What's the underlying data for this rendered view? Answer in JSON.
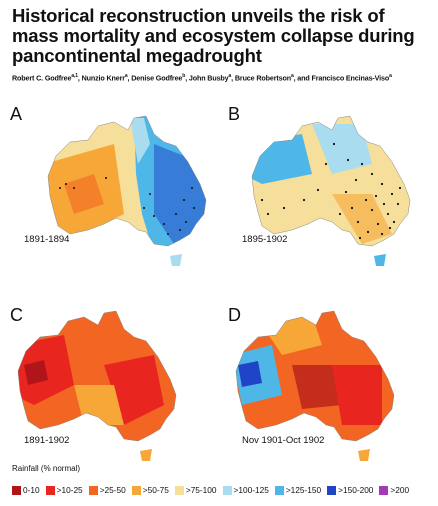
{
  "paper": {
    "title": "Historical reconstruction unveils the risk of mass mortality and ecosystem collapse during pancontinental megadrought",
    "authors": [
      {
        "name": "Robert C. Godfree",
        "sup": "a,1"
      },
      {
        "name": "Nunzio Knerr",
        "sup": "a"
      },
      {
        "name": "Denise Godfree",
        "sup": "b"
      },
      {
        "name": "John Busby",
        "sup": "a"
      },
      {
        "name": "Bruce Robertson",
        "sup": "a"
      },
      {
        "name": "Francisco Encinas-Viso",
        "sup": "a"
      }
    ]
  },
  "panels": [
    {
      "letter": "A",
      "caption": "1891-1894",
      "scheme": "mixed-wet-east",
      "points": "sparse"
    },
    {
      "letter": "B",
      "caption": "1895-1902",
      "scheme": "dry-west-wet",
      "points": "dense-east"
    },
    {
      "letter": "C",
      "caption": "1891-1902",
      "scheme": "deficit-red",
      "points": "none"
    },
    {
      "letter": "D",
      "caption": "Nov 1901-Oct 1902",
      "scheme": "deficit-red-wet-west",
      "points": "none"
    }
  ],
  "legend": {
    "title": "Rainfall (% normal)",
    "items": [
      {
        "label": "0-10",
        "color": "#b0151a"
      },
      {
        "label": ">10-25",
        "color": "#e8261f"
      },
      {
        "label": ">25-50",
        "color": "#f26522"
      },
      {
        "label": ">50-75",
        "color": "#f7a738"
      },
      {
        "label": ">75-100",
        "color": "#f6df9a"
      },
      {
        "label": ">100-125",
        "color": "#a8dcee"
      },
      {
        "label": ">125-150",
        "color": "#4fb7e7"
      },
      {
        "label": ">150-200",
        "color": "#1f44c8"
      },
      {
        "label": ">200",
        "color": "#a23bb5"
      }
    ]
  }
}
